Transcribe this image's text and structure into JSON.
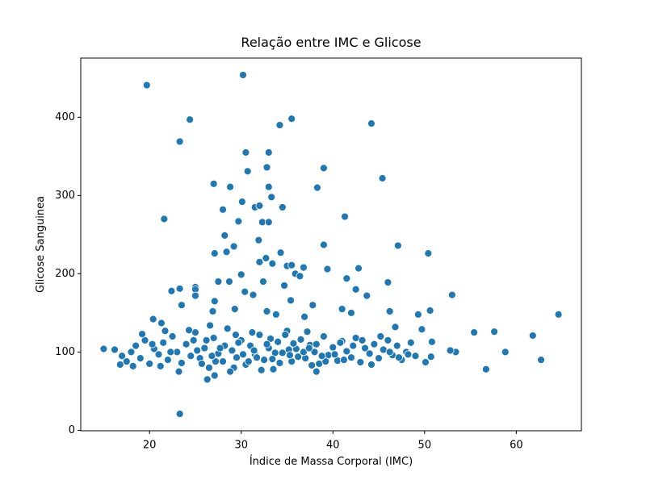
{
  "chart_data": {
    "type": "scatter",
    "title": "Relação entre IMC e Glicose",
    "x_label": "Índice de Massa Corporal (IMC)",
    "y_label": "Glicose Sanguinea",
    "color": "#1f77b4",
    "grid": false,
    "xlim": [
      12.5,
      67.1
    ],
    "ylim": [
      -0.6,
      475.6
    ],
    "xticks": [
      20,
      30,
      40,
      50,
      60
    ],
    "yticks": [
      0,
      100,
      200,
      300,
      400
    ],
    "x": [
      19.7,
      30.2,
      24.4,
      23.3,
      35.5,
      34.2,
      44.2,
      21.6,
      27,
      28.8,
      30.5,
      33,
      30.7,
      32.8,
      38.3,
      39,
      45.4,
      30.1,
      31.5,
      32,
      33.3,
      34.5,
      32.3,
      33,
      29.7,
      28,
      41.3,
      28.2,
      28.4,
      29.2,
      27.1,
      33,
      31.9,
      39,
      47.1,
      50.4,
      34.3,
      32,
      32.7,
      33.4,
      35,
      36.8,
      39.4,
      42.8,
      30,
      28.7,
      27.5,
      22.4,
      23.3,
      25,
      25,
      25,
      23.5,
      26.9,
      27.1,
      29.3,
      31.3,
      33.8,
      35.4,
      35.9,
      36.4,
      35.5,
      34.7,
      37.8,
      41,
      42,
      41.5,
      42.5,
      43.7,
      46,
      46.2,
      46.8,
      49.3,
      49.7,
      50.6,
      53,
      55.4,
      57.6,
      58.8,
      61.8,
      62.7,
      64.6,
      56.7,
      53.4,
      52.8,
      50.8,
      50.7,
      50.1,
      23.3,
      26.3,
      27.1,
      15,
      16.2,
      16.8,
      20.4,
      21.3,
      32.8,
      38.2,
      30.4,
      32.4,
      26.6,
      36.9,
      17,
      17.5,
      18,
      18.5,
      19,
      19.5,
      20,
      20.5,
      21,
      21.5,
      22,
      22.5,
      23,
      23.5,
      24,
      24.5,
      25,
      25.5,
      26,
      26.5,
      27,
      27.5,
      28,
      28.5,
      29,
      29.5,
      30,
      30.5,
      31,
      31.5,
      32,
      32.5,
      33,
      33.5,
      34,
      34.5,
      35,
      35.5,
      36,
      36.5,
      37,
      37.5,
      38,
      38.5,
      39,
      39.5,
      40,
      40.5,
      41,
      41.5,
      42,
      42.5,
      43,
      43.5,
      44,
      44.5,
      45,
      45.5,
      46,
      46.5,
      47,
      47.5,
      48,
      48.5,
      49,
      18.2,
      19.2,
      20.3,
      21.2,
      22.3,
      23.2,
      24.3,
      25.2,
      26.2,
      27.2,
      28.2,
      29.2,
      30.2,
      31.2,
      32.2,
      33.2,
      34.2,
      35.2,
      36.2,
      37.2,
      38.2,
      39.2,
      40.2,
      41.2,
      42.2,
      43.2,
      44.2,
      45.2,
      46.2,
      47.2,
      48.2,
      21.7,
      24.8,
      27.7,
      29.7,
      31.7,
      33.7,
      35.7,
      37.7,
      26.8,
      28.8,
      30.8,
      32.8,
      34.8,
      36.8,
      38.8,
      40.8,
      25.7,
      29.4,
      31.4,
      33.4,
      35.3,
      37.4
    ],
    "y": [
      441,
      454,
      397,
      369,
      398,
      390,
      392,
      270,
      315,
      311,
      355,
      355,
      331,
      336,
      310,
      335,
      322,
      292,
      285,
      287,
      298,
      285,
      266,
      266,
      267,
      282,
      273,
      249,
      228,
      235,
      226,
      311,
      243,
      237,
      236,
      226,
      227,
      215,
      220,
      213,
      210,
      208,
      206,
      207,
      199,
      190,
      190,
      178,
      181,
      183,
      180,
      172,
      160,
      152,
      165,
      155,
      173,
      148,
      166,
      200,
      197,
      211,
      185,
      160,
      155,
      150,
      194,
      180,
      172,
      189,
      152,
      132,
      148,
      129,
      153,
      173,
      125,
      126,
      100,
      121,
      90,
      148,
      78,
      100,
      102,
      113,
      94,
      87,
      21,
      65,
      70,
      104,
      103,
      84,
      142,
      137,
      152,
      75,
      177,
      190,
      134,
      145,
      95,
      88,
      100,
      108,
      92,
      115,
      85,
      104,
      97,
      112,
      90,
      120,
      100,
      86,
      110,
      95,
      125,
      92,
      105,
      80,
      118,
      98,
      88,
      130,
      102,
      93,
      115,
      84,
      108,
      97,
      122,
      90,
      105,
      78,
      113,
      99,
      127,
      88,
      104,
      116,
      92,
      109,
      100,
      85,
      120,
      96,
      106,
      89,
      114,
      101,
      93,
      118,
      87,
      105,
      98,
      110,
      92,
      103,
      115,
      96,
      108,
      90,
      100,
      112,
      95,
      82,
      123,
      110,
      82,
      100,
      75,
      128,
      102,
      115,
      88,
      108,
      80,
      97,
      125,
      77,
      117,
      86,
      103,
      94,
      126,
      110,
      88,
      97,
      90,
      108,
      115,
      84,
      120,
      100,
      93,
      97,
      127,
      115,
      105,
      112,
      93,
      99,
      111,
      83,
      95,
      75,
      88,
      110,
      122,
      100,
      95,
      112,
      85,
      122,
      102,
      91,
      96,
      105
    ]
  }
}
